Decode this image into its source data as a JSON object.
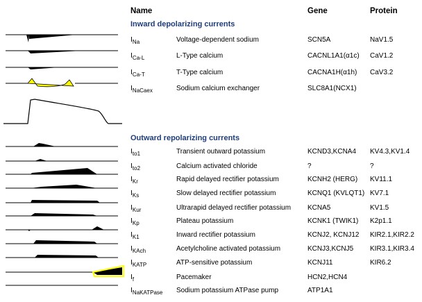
{
  "headers": {
    "name": "Name",
    "gene": "Gene",
    "protein": "Protein"
  },
  "sections": {
    "inward": "Inward depolarizing currents",
    "outward": "Outward repolarizing currents"
  },
  "inward_rows": [
    {
      "sym": "I",
      "sub": "Na",
      "name": "Voltage-dependent sodium",
      "gene": "SCN5A",
      "protein": "NaV1.5"
    },
    {
      "sym": "I",
      "sub": "Ca-L",
      "name": "L-Type calcium",
      "gene": "CACNL1A1(α1c)",
      "protein": "CaV1.2"
    },
    {
      "sym": "I",
      "sub": "Ca-T",
      "name": "T-Type calcium",
      "gene": "CACNA1H(α1h)",
      "protein": "CaV3.2"
    },
    {
      "sym": "I",
      "sub": "NaCaex",
      "name": "Sodium calcium exchanger",
      "gene": "SLC8A1(NCX1)",
      "protein": ""
    }
  ],
  "outward_rows": [
    {
      "sym": "I",
      "sub": "to1",
      "name": "Transient outward potassium",
      "gene": "KCND3,KCNA4",
      "protein": "KV4.3,KV1.4"
    },
    {
      "sym": "I",
      "sub": "to2",
      "name": "Calcium activated chloride",
      "gene": "?",
      "protein": "?"
    },
    {
      "sym": "I",
      "sub": "Kr",
      "name": "Rapid delayed rectifier potassium",
      "gene": "KCNH2 (HERG)",
      "protein": "KV11.1"
    },
    {
      "sym": "I",
      "sub": "Ks",
      "name": "Slow delayed rectifier potassium",
      "gene": "KCNQ1 (KVLQT1)",
      "protein": "KV7.1"
    },
    {
      "sym": "I",
      "sub": "Kur",
      "name": "Ultrarapid delayed rectifier potassium",
      "gene": "KCNA5",
      "protein": "KV1.5"
    },
    {
      "sym": "I",
      "sub": "Kp",
      "name": "Plateau potassium",
      "gene": "KCNK1 (TWIK1)",
      "protein": "K2p1.1"
    },
    {
      "sym": "I",
      "sub": "K1",
      "name": "Inward rectifier potassium",
      "gene": "KCNJ2, KCNJ12",
      "protein": "KIR2.1,KIR2.2"
    },
    {
      "sym": "I",
      "sub": "KAch",
      "name": "Acetylcholine activated potassium",
      "gene": "KCNJ3,KCNJ5",
      "protein": "KIR3.1,KIR3.4"
    },
    {
      "sym": "I",
      "sub": "KATP",
      "name": "ATP-sensitive potassium",
      "gene": "KCNJ11",
      "protein": "KIR6.2"
    },
    {
      "sym": "I",
      "sub": "f",
      "name": "Pacemaker",
      "gene": "HCN2,HCN4",
      "protein": ""
    },
    {
      "sym": "I",
      "sub": "NaKATPase",
      "name": "Sodium potassium ATPase pump",
      "gene": "ATP1A1",
      "protein": ""
    }
  ],
  "colors": {
    "trace": "#000000",
    "highlight": "#ffff00",
    "section": "#1f3d7a"
  }
}
